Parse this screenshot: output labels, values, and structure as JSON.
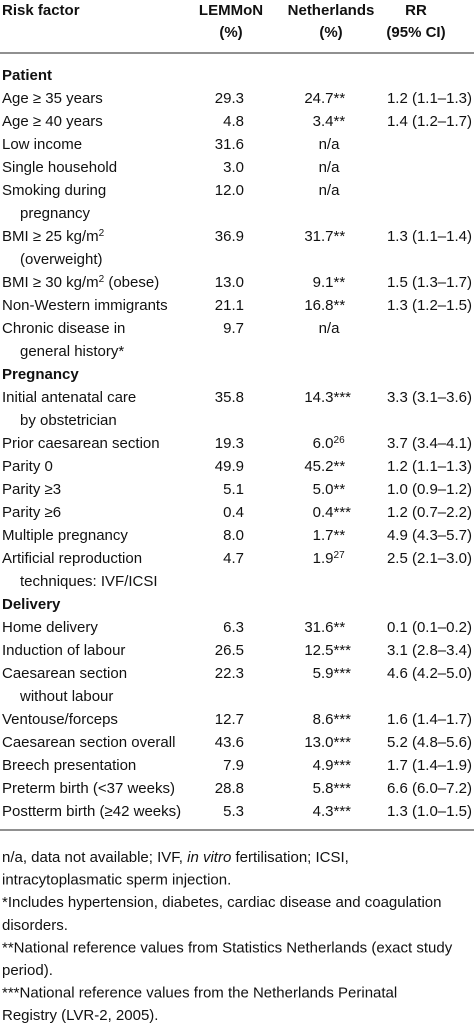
{
  "table": {
    "header": [
      [
        "Risk factor"
      ],
      [
        "LEMMoN",
        "(%)"
      ],
      [
        "Netherlands",
        "(%)"
      ],
      [
        "RR",
        "(95% CI)"
      ]
    ],
    "sections": [
      {
        "title": "Patient",
        "rows": [
          {
            "factor": [
              "Age ≥ 35 years"
            ],
            "lemmon": "29.3",
            "nl": "24.7**",
            "rr": "1.2 (1.1–1.3)"
          },
          {
            "factor": [
              "Age ≥ 40 years"
            ],
            "lemmon": "4.8",
            "nl": "3.4**",
            "rr": "1.4 (1.2–1.7)"
          },
          {
            "factor": [
              "Low income"
            ],
            "lemmon": "31.6",
            "nl": "n/a",
            "rr": ""
          },
          {
            "factor": [
              "Single household"
            ],
            "lemmon": "3.0",
            "nl": "n/a",
            "rr": ""
          },
          {
            "factor": [
              "Smoking during",
              "pregnancy"
            ],
            "lemmon": "12.0",
            "nl": "n/a",
            "rr": ""
          },
          {
            "factor": [
              [
                "BMI ≥ 25 kg/m",
                {
                  "sup": "2"
                }
              ],
              "(overweight)"
            ],
            "lemmon": "36.9",
            "nl": "31.7**",
            "rr": "1.3 (1.1–1.4)"
          },
          {
            "factor": [
              [
                "BMI ≥ 30 kg/m",
                {
                  "sup": "2"
                },
                " (obese)"
              ]
            ],
            "lemmon": "13.0",
            "nl": "9.1**",
            "rr": "1.5 (1.3–1.7)"
          },
          {
            "factor": [
              "Non-Western immigrants"
            ],
            "lemmon": "21.1",
            "nl": "16.8**",
            "rr": "1.3 (1.2–1.5)"
          },
          {
            "factor": [
              "Chronic disease in",
              "general history*"
            ],
            "lemmon": "9.7",
            "nl": "n/a",
            "rr": ""
          }
        ]
      },
      {
        "title": "Pregnancy",
        "rows": [
          {
            "factor": [
              "Initial antenatal care",
              "by obstetrician"
            ],
            "lemmon": "35.8",
            "nl": "14.3***",
            "rr": "3.3 (3.1–3.6)"
          },
          {
            "factor": [
              "Prior caesarean section"
            ],
            "lemmon": "19.3",
            "nl": [
              "6.0",
              {
                "sup": "26"
              }
            ],
            "rr": "3.7 (3.4–4.1)"
          },
          {
            "factor": [
              "Parity 0"
            ],
            "lemmon": "49.9",
            "nl": "45.2**",
            "rr": "1.2 (1.1–1.3)"
          },
          {
            "factor": [
              "Parity ≥3"
            ],
            "lemmon": "5.1",
            "nl": "5.0**",
            "rr": "1.0 (0.9–1.2)"
          },
          {
            "factor": [
              "Parity ≥6"
            ],
            "lemmon": "0.4",
            "nl": "0.4***",
            "rr": "1.2 (0.7–2.2)"
          },
          {
            "factor": [
              "Multiple pregnancy"
            ],
            "lemmon": "8.0",
            "nl": "1.7**",
            "rr": "4.9 (4.3–5.7)"
          },
          {
            "factor": [
              "Artificial reproduction",
              "techniques: IVF/ICSI"
            ],
            "lemmon": "4.7",
            "nl": [
              "1.9",
              {
                "sup": "27"
              }
            ],
            "rr": "2.5 (2.1–3.0)"
          }
        ]
      },
      {
        "title": "Delivery",
        "rows": [
          {
            "factor": [
              "Home delivery"
            ],
            "lemmon": "6.3",
            "nl": "31.6**",
            "rr": "0.1 (0.1–0.2)"
          },
          {
            "factor": [
              "Induction of labour"
            ],
            "lemmon": "26.5",
            "nl": "12.5***",
            "rr": "3.1 (2.8–3.4)"
          },
          {
            "factor": [
              "Caesarean section",
              "without labour"
            ],
            "lemmon": "22.3",
            "nl": "5.9***",
            "rr": "4.6 (4.2–5.0)"
          },
          {
            "factor": [
              "Ventouse/forceps"
            ],
            "lemmon": "12.7",
            "nl": "8.6***",
            "rr": "1.6 (1.4–1.7)"
          },
          {
            "factor": [
              "Caesarean section overall"
            ],
            "lemmon": "43.6",
            "nl": "13.0***",
            "rr": "5.2 (4.8–5.6)"
          },
          {
            "factor": [
              "Breech presentation"
            ],
            "lemmon": "7.9",
            "nl": "4.9***",
            "rr": "1.7 (1.4–1.9)"
          },
          {
            "factor": [
              "Preterm birth (<37 weeks)"
            ],
            "lemmon": "28.8",
            "nl": "5.8***",
            "rr": "6.6 (6.0–7.2)"
          },
          {
            "factor": [
              "Postterm birth (≥42 weeks)"
            ],
            "lemmon": "5.3",
            "nl": "4.3***",
            "rr": "1.3 (1.0–1.5)"
          }
        ]
      }
    ],
    "footnotes": [
      [
        "n/a, data not available; IVF, ",
        {
          "i": "in vitro"
        },
        " fertilisation; ICSI,"
      ],
      "intracytoplasmatic sperm injection.",
      "*Includes hypertension, diabetes, cardiac disease and coagulation",
      "disorders.",
      "**National reference values from Statistics Netherlands (exact study",
      "period).",
      "***National reference values from the Netherlands Perinatal",
      "Registry (LVR-2, 2005)."
    ]
  }
}
